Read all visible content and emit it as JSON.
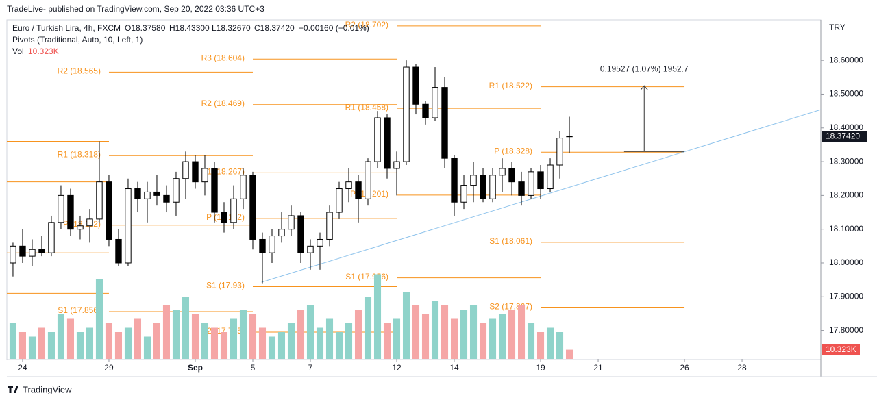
{
  "header": {
    "published": "TradeLive- published on TradingView.com, Sep 20, 2022 03:36 UTC+3"
  },
  "footer": {
    "brand": "TradingView"
  },
  "chart_data": {
    "type": "candlestick",
    "legend": {
      "symbol": "Euro / Turkish Lira, 4h, FXCM",
      "open": "O18.37580",
      "high": "H18.43300",
      "low": "L18.32670",
      "close": "C18.37420",
      "change": "−0.00160 (−0.01%)",
      "pivots": "Pivots (Traditional, Auto, 10, Left, 1)",
      "vol": "Vol",
      "vol_value": "10.323K"
    },
    "currency": "TRY",
    "price_label": "18.37420",
    "volume_axis_label": "10.323K",
    "up_color": "#ffffff",
    "down_color": "#000000",
    "volume_up_color": "#8fd3ca",
    "volume_down_color": "#f5a6a6",
    "pivot_color": "#f7931e",
    "trend_color": "#90c4ec",
    "xlim": [
      -0.64,
      84.21
    ],
    "ylim": [
      17.716,
      18.718
    ],
    "volume_lim": [
      0,
      100
    ],
    "yticks": [
      {
        "value": 18.6,
        "label": "18.60000"
      },
      {
        "value": 18.5,
        "label": "18.50000"
      },
      {
        "value": 18.4,
        "label": "18.40000"
      },
      {
        "value": 18.3,
        "label": "18.30000"
      },
      {
        "value": 18.2,
        "label": "18.20000"
      },
      {
        "value": 18.1,
        "label": "18.10000"
      },
      {
        "value": 18.0,
        "label": "18.00000"
      },
      {
        "value": 17.9,
        "label": "17.90000"
      },
      {
        "value": 17.8,
        "label": "17.80000"
      }
    ],
    "xticks": [
      {
        "value": 1,
        "label": "24"
      },
      {
        "value": 10,
        "label": "29"
      },
      {
        "value": 19,
        "label": "Sep"
      },
      {
        "value": 25,
        "label": "5"
      },
      {
        "value": 31,
        "label": "7"
      },
      {
        "value": 40,
        "label": "12"
      },
      {
        "value": 46,
        "label": "14"
      },
      {
        "value": 55,
        "label": "19"
      },
      {
        "value": 61,
        "label": "21"
      },
      {
        "value": 70,
        "label": "26"
      },
      {
        "value": 76,
        "label": "28"
      }
    ],
    "open": [
      18.0,
      18.05,
      18.02,
      18.04,
      18.03,
      18.12,
      18.2,
      18.1,
      18.11,
      18.13,
      18.24,
      18.07,
      18.0,
      18.22,
      18.19,
      18.21,
      18.2,
      18.18,
      18.25,
      18.3,
      18.24,
      18.28,
      18.15,
      18.12,
      18.19,
      18.26,
      18.07,
      18.03,
      18.08,
      18.1,
      18.14,
      18.03,
      18.05,
      18.07,
      18.15,
      18.22,
      18.24,
      18.19,
      18.3,
      18.43,
      18.28,
      18.3,
      18.58,
      18.47,
      18.43,
      18.52,
      18.31,
      18.18,
      18.23,
      18.26,
      18.19,
      18.26,
      18.28,
      18.24,
      18.2,
      18.27,
      18.22,
      18.29,
      18.3758
    ],
    "high": [
      18.06,
      18.1,
      18.07,
      18.08,
      18.14,
      18.23,
      18.22,
      18.14,
      18.16,
      18.36,
      18.26,
      18.1,
      18.25,
      18.24,
      18.24,
      18.26,
      18.23,
      18.27,
      18.33,
      18.32,
      18.32,
      18.3,
      18.18,
      18.23,
      18.28,
      18.27,
      18.09,
      18.1,
      18.15,
      18.17,
      18.15,
      18.07,
      18.09,
      18.17,
      18.24,
      18.28,
      18.26,
      18.31,
      18.45,
      18.44,
      18.33,
      18.6,
      18.59,
      18.48,
      18.58,
      18.55,
      18.32,
      18.26,
      18.3,
      18.28,
      18.28,
      18.31,
      18.3,
      18.27,
      18.28,
      18.29,
      18.31,
      18.39,
      18.433
    ],
    "low": [
      17.96,
      18.0,
      17.99,
      18.02,
      18.02,
      18.1,
      18.08,
      18.07,
      18.06,
      18.12,
      18.05,
      17.99,
      17.99,
      18.15,
      18.12,
      18.17,
      18.15,
      18.14,
      18.19,
      18.22,
      18.2,
      18.12,
      18.09,
      18.1,
      18.16,
      18.04,
      17.94,
      18.0,
      18.06,
      18.08,
      18.0,
      17.98,
      17.98,
      18.05,
      18.13,
      18.18,
      18.12,
      18.17,
      18.28,
      18.25,
      18.2,
      18.29,
      18.44,
      18.41,
      18.42,
      18.28,
      18.14,
      18.16,
      18.18,
      18.18,
      18.18,
      18.21,
      18.2,
      18.17,
      18.19,
      18.19,
      18.21,
      18.25,
      18.3267
    ],
    "close": [
      18.05,
      18.02,
      18.04,
      18.03,
      18.12,
      18.2,
      18.1,
      18.11,
      18.13,
      18.24,
      18.07,
      18.0,
      18.22,
      18.19,
      18.21,
      18.2,
      18.18,
      18.25,
      18.3,
      18.24,
      18.28,
      18.15,
      18.12,
      18.19,
      18.26,
      18.07,
      18.03,
      18.08,
      18.1,
      18.14,
      18.03,
      18.05,
      18.07,
      18.15,
      18.22,
      18.24,
      18.19,
      18.3,
      18.43,
      18.28,
      18.3,
      18.58,
      18.47,
      18.43,
      18.52,
      18.31,
      18.18,
      18.23,
      18.26,
      18.19,
      18.26,
      18.28,
      18.24,
      18.2,
      18.27,
      18.22,
      18.29,
      18.37,
      18.3742
    ],
    "volume": [
      40,
      30,
      25,
      35,
      30,
      50,
      45,
      30,
      35,
      90,
      40,
      30,
      35,
      45,
      25,
      40,
      60,
      55,
      70,
      50,
      40,
      35,
      30,
      45,
      55,
      50,
      35,
      25,
      30,
      40,
      55,
      60,
      35,
      45,
      30,
      40,
      55,
      70,
      95,
      40,
      45,
      75,
      60,
      50,
      65,
      60,
      45,
      55,
      60,
      40,
      45,
      50,
      55,
      60,
      40,
      30,
      35,
      30,
      10.323
    ],
    "pivots": [
      {
        "value": 18.36,
        "from": -0.64,
        "to": 10
      },
      {
        "value": 18.24,
        "from": -0.64,
        "to": 10
      },
      {
        "value": 18.03,
        "from": -0.64,
        "to": 10
      },
      {
        "value": 17.91,
        "from": -0.64,
        "to": 10
      },
      {
        "label": "R2 (18.565)",
        "value": 18.565,
        "from": 10,
        "to": 25
      },
      {
        "label": "R1 (18.318)",
        "value": 18.318,
        "from": 10,
        "to": 25
      },
      {
        "label": "P (18.112)",
        "value": 18.112,
        "from": 10,
        "to": 25
      },
      {
        "label": "S1 (17.856)",
        "value": 17.856,
        "from": 10,
        "to": 25
      },
      {
        "label": "R3 (18.604)",
        "value": 18.604,
        "from": 25,
        "to": 40
      },
      {
        "label": "R2 (18.469)",
        "value": 18.469,
        "from": 25,
        "to": 40
      },
      {
        "label": "R1 (18.267)",
        "value": 18.267,
        "from": 25,
        "to": 40
      },
      {
        "label": "P (18.132)",
        "value": 18.132,
        "from": 25,
        "to": 40
      },
      {
        "label": "S1 (17.93)",
        "value": 17.93,
        "from": 25,
        "to": 40
      },
      {
        "label": "S2 (17.795)",
        "value": 17.795,
        "from": 25,
        "to": 40
      },
      {
        "label": "R2 (18.702)",
        "value": 18.702,
        "from": 40,
        "to": 55
      },
      {
        "label": "R1 (18.458)",
        "value": 18.458,
        "from": 40,
        "to": 55
      },
      {
        "label": "P (18.201)",
        "value": 18.201,
        "from": 40,
        "to": 55
      },
      {
        "label": "S1 (17.956)",
        "value": 17.956,
        "from": 40,
        "to": 55
      },
      {
        "label": "R1 (18.522)",
        "value": 18.522,
        "from": 55,
        "to": 70
      },
      {
        "label": "P (18.328)",
        "value": 18.328,
        "from": 55,
        "to": 70
      },
      {
        "label": "S1 (18.061)",
        "value": 18.061,
        "from": 55,
        "to": 70
      },
      {
        "label": "S2 (17.867)",
        "value": 17.867,
        "from": 55,
        "to": 70
      }
    ],
    "trendline": {
      "x": [
        25.9,
        84.36
      ],
      "y": [
        17.943,
        18.454
      ]
    },
    "measure": {
      "label": "0.19527 (1.07%) 1952.7",
      "x": 65.8,
      "x_from": 63.7,
      "x_to": 70,
      "from": 18.33,
      "to": 18.525
    }
  }
}
